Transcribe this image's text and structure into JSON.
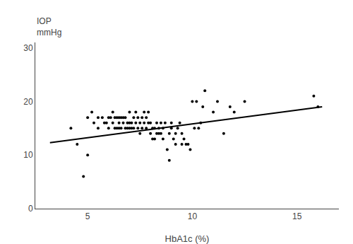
{
  "chart_data": {
    "type": "scatter",
    "xlabel": "HbA1c (%)",
    "ylabel": "IOP\nmmHg",
    "series": [
      {
        "type": "scatter",
        "color": "black",
        "marker": "dot",
        "x": [
          4.2,
          4.5,
          4.8,
          5.0,
          5.0,
          5.2,
          5.3,
          5.5,
          5.5,
          5.7,
          5.8,
          5.9,
          6.0,
          6.0,
          6.1,
          6.2,
          6.2,
          6.3,
          6.3,
          6.4,
          6.4,
          6.5,
          6.5,
          6.5,
          6.6,
          6.6,
          6.7,
          6.7,
          6.8,
          6.8,
          6.9,
          6.9,
          7.0,
          7.0,
          7.0,
          7.1,
          7.1,
          7.2,
          7.2,
          7.3,
          7.3,
          7.4,
          7.4,
          7.5,
          7.5,
          7.6,
          7.6,
          7.7,
          7.7,
          7.8,
          7.8,
          7.9,
          7.9,
          8.0,
          8.0,
          8.1,
          8.1,
          8.2,
          8.2,
          8.3,
          8.3,
          8.4,
          8.4,
          8.5,
          8.5,
          8.6,
          8.6,
          8.7,
          8.8,
          8.9,
          8.9,
          9.0,
          9.0,
          9.1,
          9.2,
          9.2,
          9.3,
          9.4,
          9.5,
          9.5,
          9.6,
          9.7,
          9.8,
          9.9,
          10.0,
          10.1,
          10.2,
          10.3,
          10.4,
          10.5,
          10.6,
          11.0,
          11.2,
          11.5,
          11.8,
          12.0,
          12.5,
          15.8,
          16.0
        ],
        "values": [
          15.0,
          12.0,
          6.0,
          10.0,
          17.0,
          18.0,
          16.0,
          15.0,
          17.0,
          17.0,
          16.0,
          16.0,
          15.0,
          17.0,
          17.0,
          18.0,
          16.0,
          17.0,
          15.0,
          17.0,
          15.0,
          17.0,
          15.0,
          16.0,
          17.0,
          15.0,
          17.0,
          16.0,
          15.0,
          17.0,
          16.0,
          15.0,
          15.0,
          16.0,
          18.0,
          16.0,
          15.0,
          17.0,
          15.0,
          16.0,
          18.0,
          17.0,
          15.0,
          16.0,
          14.0,
          17.0,
          15.0,
          16.0,
          18.0,
          15.0,
          17.0,
          16.0,
          18.0,
          16.0,
          14.0,
          15.0,
          13.0,
          15.0,
          13.0,
          14.0,
          16.0,
          14.0,
          15.0,
          16.0,
          14.0,
          15.0,
          13.0,
          16.0,
          11.0,
          14.0,
          9.0,
          16.0,
          15.0,
          13.0,
          12.0,
          14.0,
          15.0,
          16.0,
          14.0,
          12.0,
          13.0,
          12.0,
          12.0,
          11.0,
          20.0,
          15.0,
          20.0,
          15.0,
          16.0,
          19.0,
          22.0,
          18.0,
          20.0,
          14.0,
          19.0,
          18.0,
          20.0,
          21.0,
          19.0
        ]
      },
      {
        "type": "line",
        "color": "black",
        "line_style": "solid",
        "x": [
          3.2,
          16.2
        ],
        "values": [
          12.3,
          19.0
        ]
      }
    ],
    "xlim": [
      2.5,
      17.0
    ],
    "ylim": [
      0,
      31
    ],
    "xticks": [
      5,
      10,
      15
    ],
    "yticks": [
      0,
      10,
      20,
      30
    ],
    "grid": false
  }
}
